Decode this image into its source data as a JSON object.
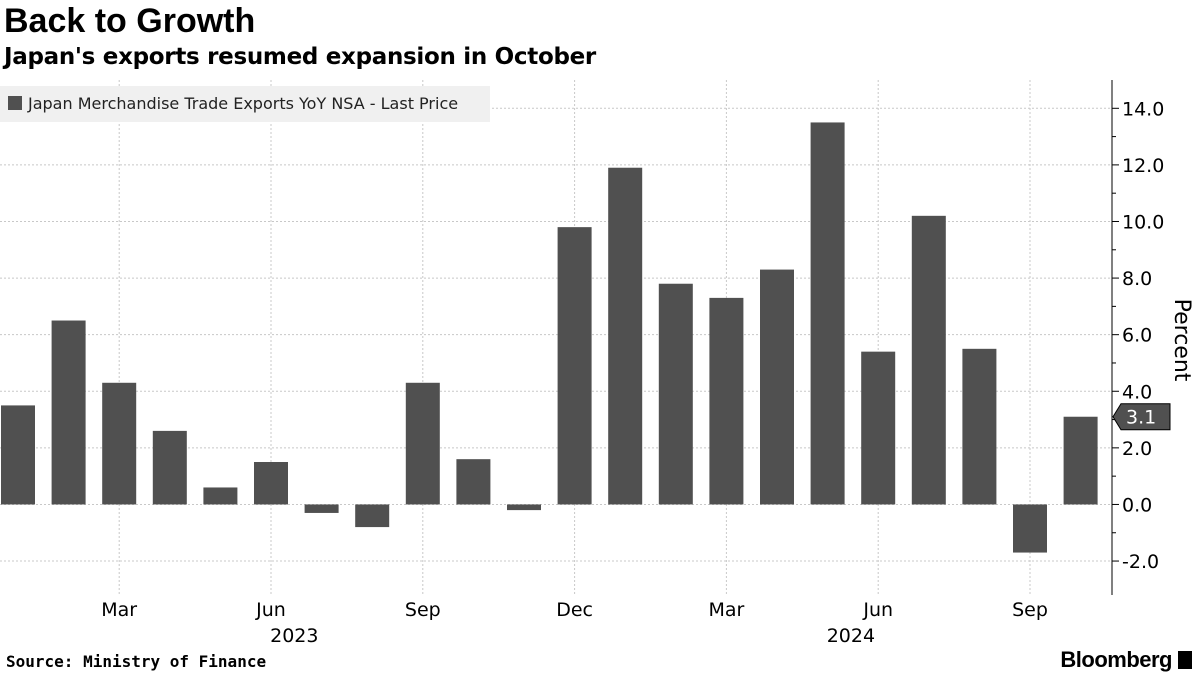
{
  "chart_data": {
    "type": "bar",
    "title": "Back to Growth",
    "subtitle": "Japan's exports resumed expansion in October",
    "legend": {
      "label": "Japan Merchandise Trade Exports YoY NSA - Last Price",
      "placement": "top-left"
    },
    "ylabel": "Percent",
    "ylim": [
      -3.2,
      15.0
    ],
    "yticks": [
      "-2.0",
      "0.0",
      "2.0",
      "4.0",
      "6.0",
      "8.0",
      "10.0",
      "12.0",
      "14.0"
    ],
    "ytick_values": [
      -2,
      0,
      2,
      4,
      6,
      8,
      10,
      12,
      14
    ],
    "categories": [
      "Jan 2023",
      "Feb 2023",
      "Mar 2023",
      "Apr 2023",
      "May 2023",
      "Jun 2023",
      "Jul 2023",
      "Aug 2023",
      "Sep 2023",
      "Oct 2023",
      "Nov 2023",
      "Dec 2023",
      "Jan 2024",
      "Feb 2024",
      "Mar 2024",
      "Apr 2024",
      "May 2024",
      "Jun 2024",
      "Jul 2024",
      "Aug 2024",
      "Sep 2024",
      "Oct 2024"
    ],
    "values": [
      3.5,
      6.5,
      4.3,
      2.6,
      0.6,
      1.5,
      -0.3,
      -0.8,
      4.3,
      1.6,
      -0.2,
      9.8,
      11.9,
      7.8,
      7.3,
      8.3,
      13.5,
      5.4,
      10.2,
      5.5,
      -1.7,
      3.1
    ],
    "xticks": [
      {
        "label": "Mar",
        "index": 2
      },
      {
        "label": "Jun",
        "index": 5
      },
      {
        "label": "Sep",
        "index": 8
      },
      {
        "label": "Dec",
        "index": 11
      },
      {
        "label": "Mar",
        "index": 14
      },
      {
        "label": "Jun",
        "index": 17
      },
      {
        "label": "Sep",
        "index": 20
      }
    ],
    "years": [
      {
        "label": "2023",
        "index": 5.5
      },
      {
        "label": "2024",
        "index": 16.5
      }
    ],
    "last_value_label": "3.1",
    "grid": true,
    "bar_color": "#505050"
  },
  "footer": {
    "source": "Source: Ministry of Finance",
    "brand": "Bloomberg"
  }
}
